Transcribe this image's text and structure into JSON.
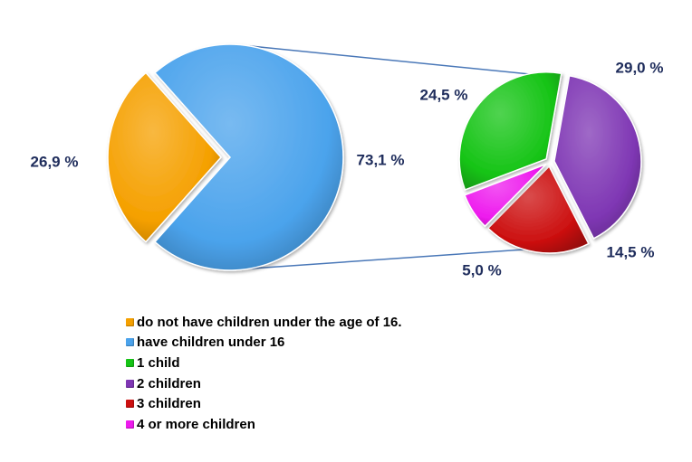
{
  "chart_data": {
    "type": "pie",
    "main_pie": {
      "slices": [
        {
          "name": "do not have children under the age of 16.",
          "value": 26.9,
          "label": "26,9 %",
          "color": "#f5a000",
          "exploded": true
        },
        {
          "name": "have children under 16",
          "value": 73.1,
          "label": "73,1 %",
          "color": "#4ba3ec",
          "exploded": false
        }
      ]
    },
    "breakdown_pie": {
      "breakdown_of": "have children under 16",
      "slices": [
        {
          "name": "1 child",
          "value": 24.5,
          "label": "24,5 %",
          "color": "#16c416"
        },
        {
          "name": "2 children",
          "value": 29.0,
          "label": "29,0 %",
          "color": "#7f37b4"
        },
        {
          "name": "3 children",
          "value": 14.5,
          "label": "14,5 %",
          "color": "#cc1010"
        },
        {
          "name": "4 or more children",
          "value": 5.0,
          "label": "5,0 %",
          "color": "#ee1aee"
        }
      ]
    },
    "legend": {
      "placement": "bottom",
      "entries": [
        {
          "label": "do not have children under the age of 16.",
          "color": "#f5a000"
        },
        {
          "label": "have children under 16",
          "color": "#4ba3ec"
        },
        {
          "label": "1 child",
          "color": "#16c416"
        },
        {
          "label": "2 children",
          "color": "#7f37b4"
        },
        {
          "label": "3 children",
          "color": "#cc1010"
        },
        {
          "label": "4 or more children",
          "color": "#ee1aee"
        }
      ]
    }
  }
}
